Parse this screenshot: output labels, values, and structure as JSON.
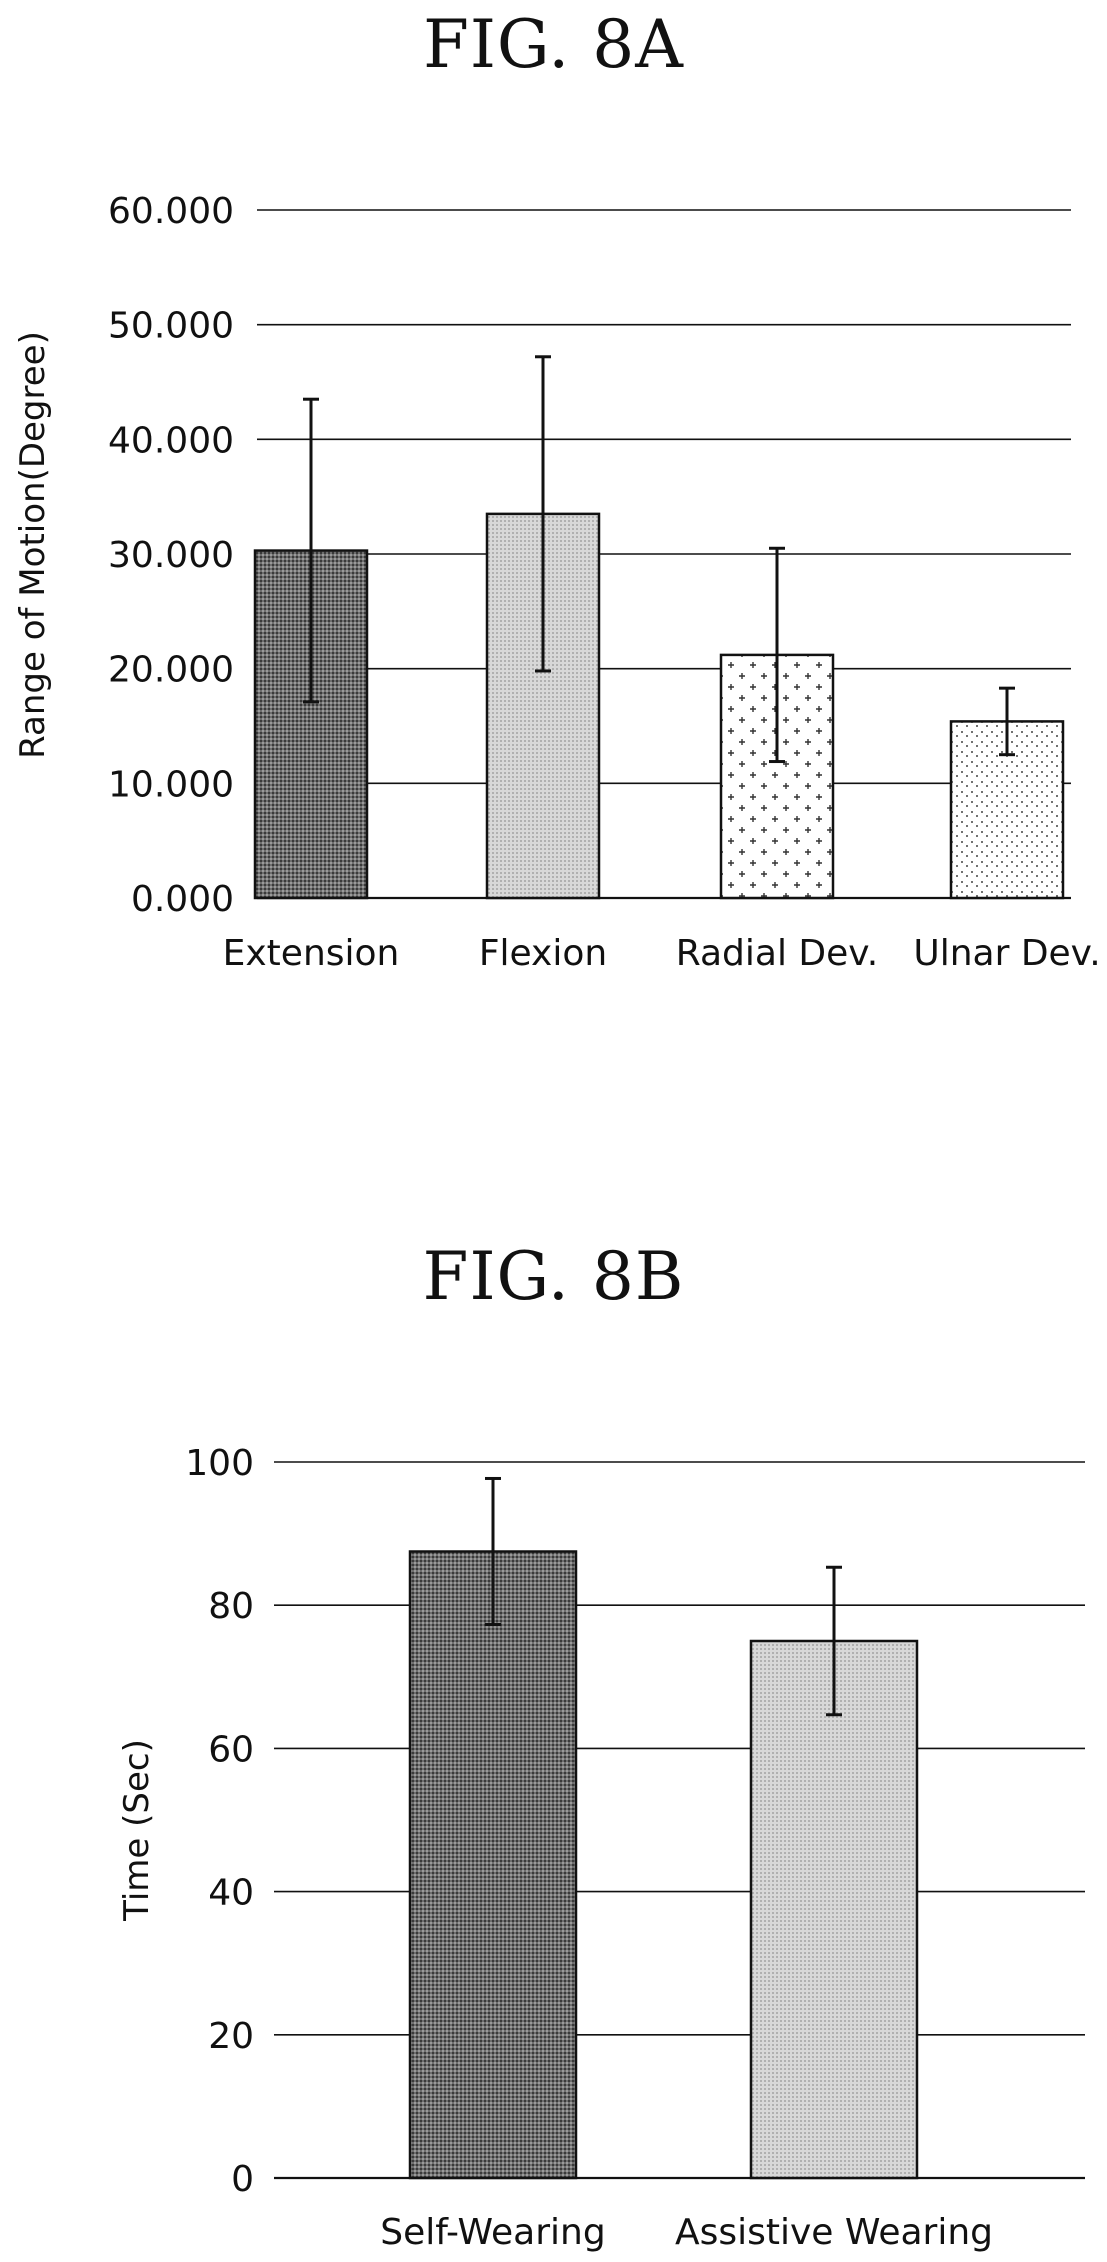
{
  "figures": {
    "a": {
      "title": "FIG. 8A"
    },
    "b": {
      "title": "FIG. 8B"
    }
  },
  "chart_data": [
    {
      "type": "bar",
      "title": "FIG. 8A",
      "ylabel": "Range of Motion(Degree)",
      "xlabel": "",
      "categories": [
        "Extension",
        "Flexion",
        "Radial Dev.",
        "Ulnar Dev."
      ],
      "values": [
        30.3,
        33.5,
        21.2,
        15.4
      ],
      "error_bars": [
        13.2,
        13.7,
        9.3,
        2.9
      ],
      "ylim": [
        0,
        60
      ],
      "yticks": [
        0,
        10,
        20,
        30,
        40,
        50,
        60
      ],
      "ytick_labels": [
        "0.000",
        "10.000",
        "20.000",
        "30.000",
        "40.000",
        "50.000",
        "60.000"
      ],
      "grid": true,
      "fills": [
        "dark-dots",
        "light-dots",
        "crosses",
        "fine-dots"
      ]
    },
    {
      "type": "bar",
      "title": "FIG. 8B",
      "ylabel": "Time (Sec)",
      "xlabel": "",
      "categories": [
        "Self-Wearing",
        "Assistive Wearing"
      ],
      "values": [
        87.5,
        75.0
      ],
      "error_bars": [
        10.2,
        10.3
      ],
      "ylim": [
        0,
        100
      ],
      "yticks": [
        0,
        20,
        40,
        60,
        80,
        100
      ],
      "ytick_labels": [
        "0",
        "20",
        "40",
        "60",
        "80",
        "100"
      ],
      "grid": true,
      "fills": [
        "dark-dots",
        "light-dots"
      ]
    }
  ]
}
